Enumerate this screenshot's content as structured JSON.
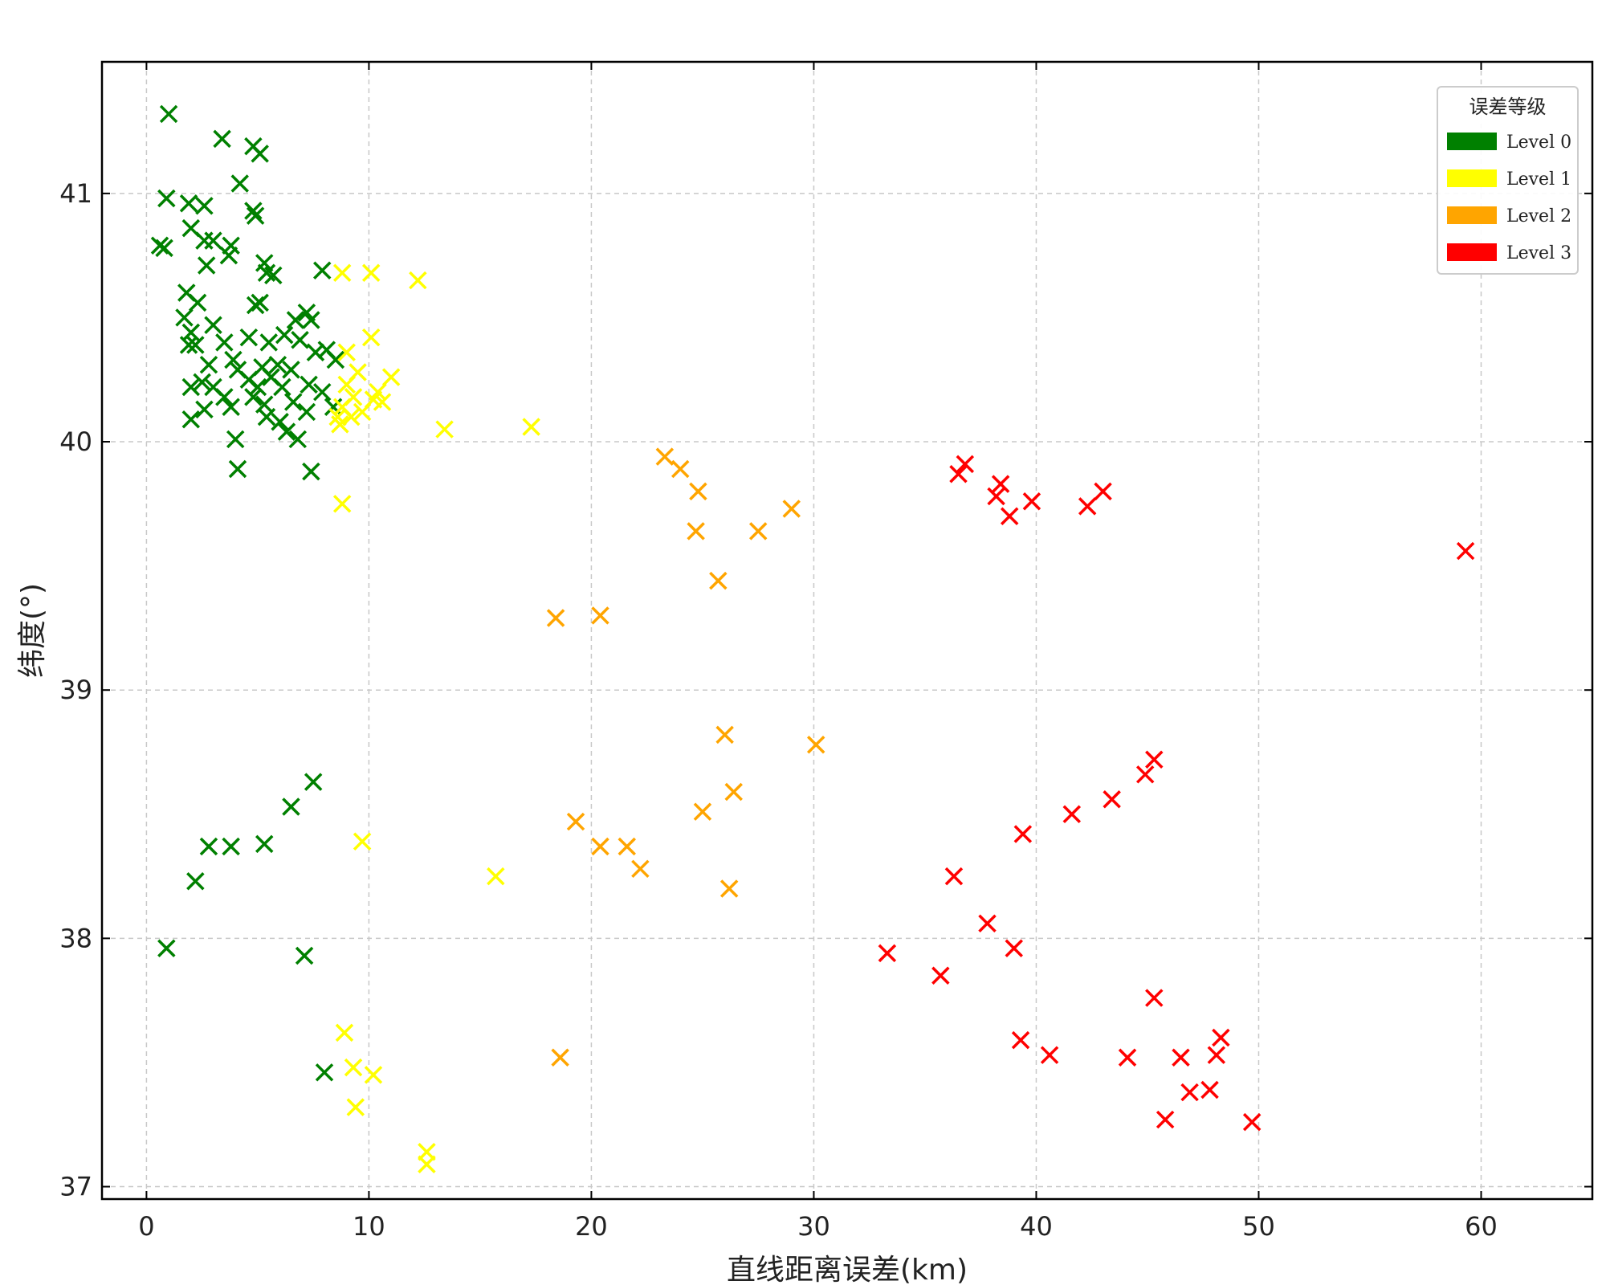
{
  "chart_data": {
    "type": "scatter",
    "xlabel": "直线距离误差(km)",
    "ylabel": "纬度(°)",
    "xlim": [
      -2,
      65
    ],
    "ylim": [
      36.95,
      41.53
    ],
    "xticks": [
      0,
      10,
      20,
      30,
      40,
      50,
      60
    ],
    "yticks": [
      37,
      38,
      39,
      40,
      41
    ],
    "grid": true,
    "marker": "x",
    "legend": {
      "title": "误差等级",
      "placement": "top-right",
      "entries": [
        "Level 0",
        "Level 1",
        "Level 2",
        "Level 3"
      ]
    },
    "series": [
      {
        "name": "Level 0",
        "color": "#008000",
        "points": [
          [
            1.0,
            41.32
          ],
          [
            3.4,
            41.22
          ],
          [
            4.8,
            41.19
          ],
          [
            5.1,
            41.16
          ],
          [
            4.2,
            41.04
          ],
          [
            0.9,
            40.98
          ],
          [
            1.9,
            40.96
          ],
          [
            2.6,
            40.95
          ],
          [
            4.8,
            40.93
          ],
          [
            4.9,
            40.91
          ],
          [
            2.0,
            40.86
          ],
          [
            2.6,
            40.81
          ],
          [
            3.0,
            40.81
          ],
          [
            3.8,
            40.79
          ],
          [
            0.6,
            40.79
          ],
          [
            0.8,
            40.78
          ],
          [
            3.7,
            40.75
          ],
          [
            2.7,
            40.71
          ],
          [
            5.3,
            40.72
          ],
          [
            5.4,
            40.68
          ],
          [
            5.7,
            40.67
          ],
          [
            7.9,
            40.69
          ],
          [
            1.8,
            40.6
          ],
          [
            2.3,
            40.56
          ],
          [
            4.9,
            40.55
          ],
          [
            5.1,
            40.56
          ],
          [
            1.7,
            40.5
          ],
          [
            3.0,
            40.47
          ],
          [
            6.7,
            40.49
          ],
          [
            7.2,
            40.52
          ],
          [
            7.4,
            40.49
          ],
          [
            2.0,
            40.44
          ],
          [
            1.9,
            40.39
          ],
          [
            2.2,
            40.39
          ],
          [
            3.5,
            40.4
          ],
          [
            4.6,
            40.42
          ],
          [
            5.5,
            40.4
          ],
          [
            6.2,
            40.43
          ],
          [
            6.9,
            40.41
          ],
          [
            7.6,
            40.36
          ],
          [
            8.1,
            40.37
          ],
          [
            8.5,
            40.33
          ],
          [
            2.8,
            40.31
          ],
          [
            3.9,
            40.33
          ],
          [
            5.2,
            40.3
          ],
          [
            5.9,
            40.31
          ],
          [
            6.5,
            40.29
          ],
          [
            2.0,
            40.22
          ],
          [
            2.5,
            40.24
          ],
          [
            3.0,
            40.22
          ],
          [
            3.5,
            40.18
          ],
          [
            4.1,
            40.29
          ],
          [
            4.6,
            40.25
          ],
          [
            5.0,
            40.22
          ],
          [
            5.6,
            40.26
          ],
          [
            6.1,
            40.22
          ],
          [
            7.3,
            40.23
          ],
          [
            7.9,
            40.2
          ],
          [
            8.4,
            40.14
          ],
          [
            2.0,
            40.09
          ],
          [
            2.6,
            40.13
          ],
          [
            3.8,
            40.14
          ],
          [
            4.8,
            40.18
          ],
          [
            5.3,
            40.15
          ],
          [
            6.6,
            40.16
          ],
          [
            7.2,
            40.12
          ],
          [
            5.4,
            40.1
          ],
          [
            6.0,
            40.08
          ],
          [
            6.3,
            40.04
          ],
          [
            6.8,
            40.01
          ],
          [
            4.0,
            40.01
          ],
          [
            4.1,
            39.89
          ],
          [
            7.4,
            39.88
          ],
          [
            7.5,
            38.63
          ],
          [
            6.5,
            38.53
          ],
          [
            2.8,
            38.37
          ],
          [
            3.8,
            38.37
          ],
          [
            5.3,
            38.38
          ],
          [
            2.2,
            38.23
          ],
          [
            0.9,
            37.96
          ],
          [
            7.1,
            37.93
          ],
          [
            8.0,
            37.46
          ]
        ]
      },
      {
        "name": "Level 1",
        "color": "#ffff00",
        "points": [
          [
            8.8,
            40.68
          ],
          [
            10.1,
            40.68
          ],
          [
            12.2,
            40.65
          ],
          [
            10.1,
            40.42
          ],
          [
            9.0,
            40.36
          ],
          [
            9.5,
            40.28
          ],
          [
            11.0,
            40.26
          ],
          [
            9.0,
            40.23
          ],
          [
            10.4,
            40.2
          ],
          [
            9.3,
            40.18
          ],
          [
            10.2,
            40.17
          ],
          [
            10.6,
            40.16
          ],
          [
            8.8,
            40.14
          ],
          [
            9.7,
            40.12
          ],
          [
            8.6,
            40.1
          ],
          [
            9.2,
            40.1
          ],
          [
            8.7,
            40.07
          ],
          [
            13.4,
            40.05
          ],
          [
            17.3,
            40.06
          ],
          [
            8.8,
            39.75
          ],
          [
            9.7,
            38.39
          ],
          [
            15.7,
            38.25
          ],
          [
            8.9,
            37.62
          ],
          [
            9.3,
            37.48
          ],
          [
            10.2,
            37.45
          ],
          [
            9.4,
            37.32
          ],
          [
            12.6,
            37.14
          ],
          [
            12.6,
            37.09
          ]
        ]
      },
      {
        "name": "Level 2",
        "color": "#ffa500",
        "points": [
          [
            23.3,
            39.94
          ],
          [
            24.0,
            39.89
          ],
          [
            24.8,
            39.8
          ],
          [
            29.0,
            39.73
          ],
          [
            24.7,
            39.64
          ],
          [
            27.5,
            39.64
          ],
          [
            25.7,
            39.44
          ],
          [
            18.4,
            39.29
          ],
          [
            20.4,
            39.3
          ],
          [
            26.0,
            38.82
          ],
          [
            30.1,
            38.78
          ],
          [
            26.4,
            38.59
          ],
          [
            25.0,
            38.51
          ],
          [
            19.3,
            38.47
          ],
          [
            20.4,
            38.37
          ],
          [
            21.6,
            38.37
          ],
          [
            22.2,
            38.28
          ],
          [
            26.2,
            38.2
          ],
          [
            18.6,
            37.52
          ]
        ]
      },
      {
        "name": "Level 3",
        "color": "#ff0000",
        "points": [
          [
            36.5,
            39.87
          ],
          [
            36.8,
            39.91
          ],
          [
            38.4,
            39.83
          ],
          [
            38.2,
            39.78
          ],
          [
            39.8,
            39.76
          ],
          [
            38.8,
            39.7
          ],
          [
            42.3,
            39.74
          ],
          [
            43.0,
            39.8
          ],
          [
            59.3,
            39.56
          ],
          [
            45.3,
            38.72
          ],
          [
            44.9,
            38.66
          ],
          [
            43.4,
            38.56
          ],
          [
            41.6,
            38.5
          ],
          [
            39.4,
            38.42
          ],
          [
            36.3,
            38.25
          ],
          [
            37.8,
            38.06
          ],
          [
            33.3,
            37.94
          ],
          [
            39.0,
            37.96
          ],
          [
            35.7,
            37.85
          ],
          [
            45.3,
            37.76
          ],
          [
            39.3,
            37.59
          ],
          [
            40.6,
            37.53
          ],
          [
            44.1,
            37.52
          ],
          [
            46.5,
            37.52
          ],
          [
            48.1,
            37.53
          ],
          [
            48.3,
            37.6
          ],
          [
            46.9,
            37.38
          ],
          [
            47.8,
            37.39
          ],
          [
            45.8,
            37.27
          ],
          [
            49.7,
            37.26
          ]
        ]
      }
    ]
  }
}
